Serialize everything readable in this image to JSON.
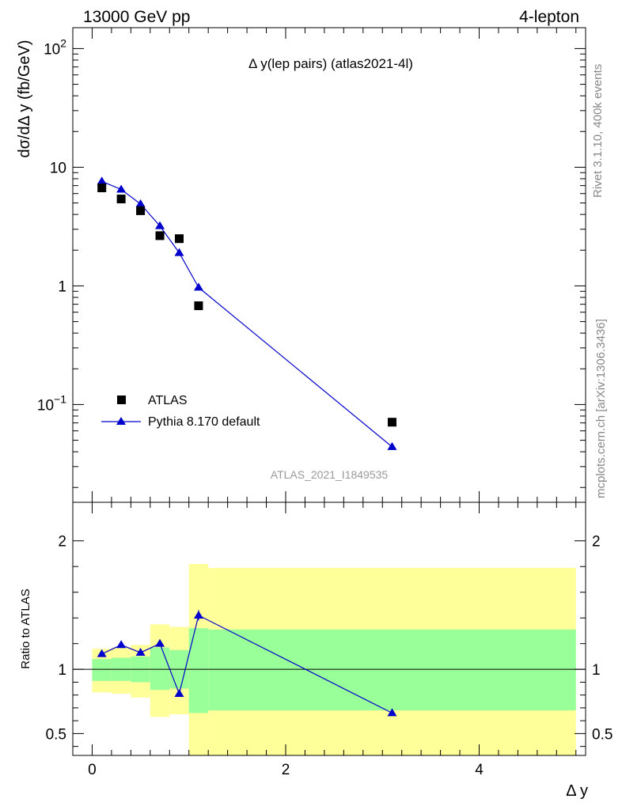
{
  "header": {
    "left": "13000 GeV pp",
    "right": "4-lepton"
  },
  "side": {
    "rivet": "Rivet 3.1.10,  400k events",
    "mcplots": "mcplots.cern.ch [arXiv:1306.3436]"
  },
  "colors": {
    "data": "#000000",
    "mc": "#0000cc",
    "band_inner": "#99ff99",
    "band_outer": "#ffff99"
  },
  "chart_data": [
    {
      "type": "scatter",
      "title": "Δ y(lep pairs) (atlas2021-4l)",
      "analysis_label": "ATLAS_2021_I1849535",
      "ylabel": "dσ/dΔ y (fb/GeV)",
      "yscale": "log",
      "ylim": [
        0.015,
        150
      ],
      "xlim": [
        -0.2,
        5.1
      ],
      "y_ticks": [
        {
          "value": 0.1,
          "base": "10",
          "exp": "−1"
        },
        {
          "value": 1,
          "label": "1"
        },
        {
          "value": 10,
          "label": "10"
        },
        {
          "value": 100,
          "base": "10",
          "exp": "2"
        }
      ],
      "legend": {
        "position": "bottom-left",
        "entries": [
          "ATLAS",
          "Pythia 8.170 default"
        ]
      },
      "series": [
        {
          "name": "ATLAS",
          "marker": "square",
          "x": [
            0.1,
            0.3,
            0.5,
            0.7,
            0.9,
            1.1,
            3.1
          ],
          "y": [
            6.7,
            5.4,
            4.3,
            2.65,
            2.5,
            0.68,
            0.071
          ]
        },
        {
          "name": "Pythia 8.170 default",
          "marker": "triangle",
          "x": [
            0.1,
            0.3,
            0.5,
            0.7,
            0.9,
            1.1,
            3.1
          ],
          "y": [
            7.6,
            6.5,
            4.9,
            3.2,
            1.9,
            0.97,
            0.044
          ]
        }
      ]
    },
    {
      "type": "line",
      "xlabel": "Δ y",
      "ylabel": "Ratio to ATLAS",
      "ylim": [
        0.33,
        2.3
      ],
      "xlim": [
        -0.2,
        5.1
      ],
      "x_ticks": [
        {
          "value": 0,
          "label": "0"
        },
        {
          "value": 2,
          "label": "2"
        },
        {
          "value": 4,
          "label": "4"
        }
      ],
      "y_ticks": [
        {
          "value": 0.5,
          "label": "0.5"
        },
        {
          "value": 1,
          "label": "1"
        },
        {
          "value": 2,
          "label": "2"
        }
      ],
      "bands": [
        {
          "x0": 0.0,
          "x1": 0.2,
          "inner": [
            0.91,
            1.08
          ],
          "outer": [
            0.82,
            1.16
          ]
        },
        {
          "x0": 0.2,
          "x1": 0.4,
          "inner": [
            0.91,
            1.09
          ],
          "outer": [
            0.81,
            1.17
          ]
        },
        {
          "x0": 0.4,
          "x1": 0.6,
          "inner": [
            0.9,
            1.1
          ],
          "outer": [
            0.78,
            1.19
          ]
        },
        {
          "x0": 0.6,
          "x1": 0.8,
          "inner": [
            0.84,
            1.17
          ],
          "outer": [
            0.63,
            1.35
          ]
        },
        {
          "x0": 0.8,
          "x1": 1.0,
          "inner": [
            0.85,
            1.15
          ],
          "outer": [
            0.65,
            1.33
          ]
        },
        {
          "x0": 1.0,
          "x1": 1.2,
          "inner": [
            0.66,
            1.32
          ],
          "outer": [
            0.33,
            1.82
          ]
        },
        {
          "x0": 1.2,
          "x1": 5.0,
          "inner": [
            0.68,
            1.31
          ],
          "outer": [
            0.33,
            1.79
          ]
        }
      ],
      "series": [
        {
          "name": "Pythia 8.170 default",
          "x": [
            0.1,
            0.3,
            0.5,
            0.7,
            0.9,
            1.1,
            3.1
          ],
          "y": [
            1.12,
            1.19,
            1.13,
            1.2,
            0.81,
            1.42,
            0.66
          ],
          "err": [
            0.012,
            0.012,
            0.012,
            0.015,
            0.015,
            0.04,
            0.02
          ]
        }
      ]
    }
  ]
}
